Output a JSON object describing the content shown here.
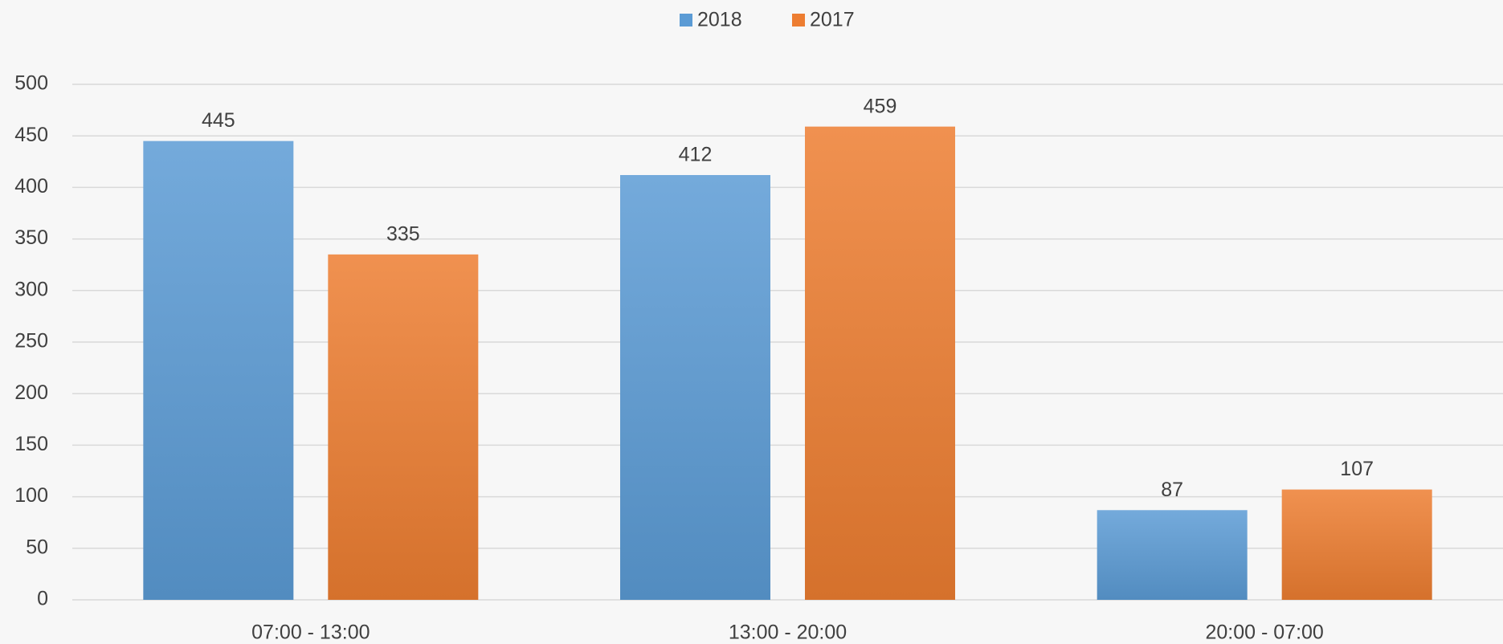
{
  "chart_data": {
    "type": "bar",
    "categories": [
      "07:00 - 13:00",
      "13:00 - 20:00",
      "20:00 - 07:00"
    ],
    "series": [
      {
        "name": "2018",
        "color": "#5b9bd5",
        "values": [
          445,
          412,
          87
        ]
      },
      {
        "name": "2017",
        "color": "#ed7d31",
        "values": [
          335,
          459,
          107
        ]
      }
    ],
    "ylim": [
      0,
      500
    ],
    "yticks": [
      0,
      50,
      100,
      150,
      200,
      250,
      300,
      350,
      400,
      450,
      500
    ],
    "grid": true,
    "legend": "top"
  }
}
